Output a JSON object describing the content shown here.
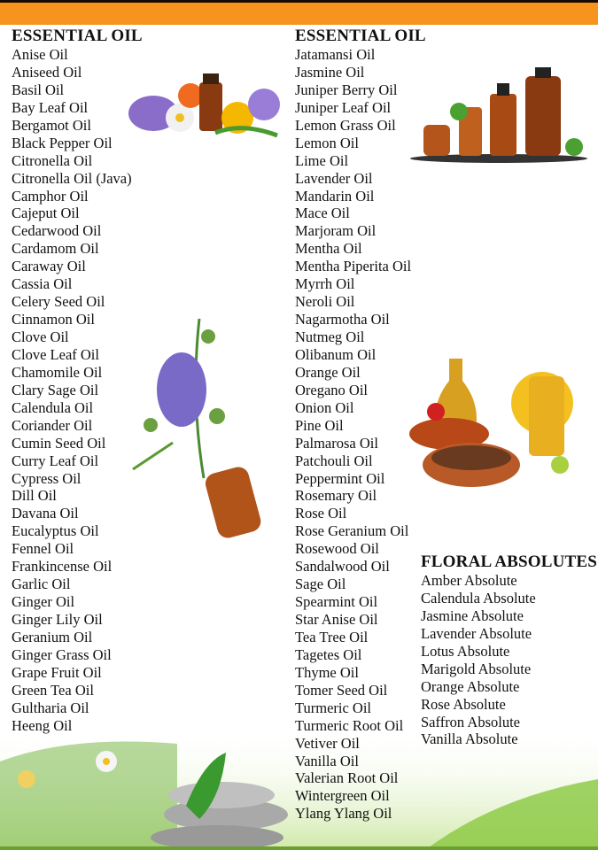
{
  "colors": {
    "top_bar": "#f7941d",
    "heading": "#111111"
  },
  "left_column": {
    "heading": "ESSENTIAL OIL",
    "items": [
      "Anise Oil",
      "Aniseed Oil",
      "Basil Oil",
      "Bay Leaf Oil",
      "Bergamot Oil",
      "Black Pepper Oil",
      "Citronella Oil",
      "Citronella Oil (Java)",
      "Camphor Oil",
      "Cajeput Oil",
      "Cedarwood Oil",
      "Cardamom Oil",
      "Caraway Oil",
      "Cassia Oil",
      "Celery Seed Oil",
      "Cinnamon Oil",
      "Clove Oil",
      "Clove Leaf Oil",
      "Chamomile Oil",
      "Clary Sage Oil",
      "Calendula Oil",
      "Coriander Oil",
      "Cumin Seed Oil",
      "Curry Leaf Oil",
      "Cypress Oil",
      "Dill Oil",
      "Davana Oil",
      "Eucalyptus Oil",
      "Fennel Oil",
      "Frankincense Oil",
      "Garlic Oil",
      "Ginger Oil",
      "Ginger Lily Oil",
      "Geranium Oil",
      "Ginger Grass Oil",
      "Grape Fruit Oil",
      "Green Tea Oil",
      "Gultharia Oil",
      "Heeng Oil"
    ]
  },
  "right_column": {
    "heading": "ESSENTIAL OIL",
    "items": [
      "Jatamansi Oil",
      "Jasmine Oil",
      "Juniper Berry Oil",
      "Juniper Leaf Oil",
      "Lemon Grass Oil",
      "Lemon Oil",
      "Lime Oil",
      "Lavender Oil",
      "Mandarin Oil",
      "Mace Oil",
      "Marjoram Oil",
      "Mentha Oil",
      "Mentha Piperita Oil",
      "Myrrh Oil",
      "Neroli Oil",
      "Nagarmotha Oil",
      "Nutmeg Oil",
      "Olibanum Oil",
      "Orange Oil",
      "Oregano Oil",
      "Onion Oil",
      "Pine Oil",
      "Palmarosa Oil",
      "Patchouli Oil",
      "Peppermint Oil",
      "Rosemary Oil",
      "Rose Oil",
      "Rose Geranium Oil",
      "Rosewood Oil",
      "Sandalwood Oil",
      "Sage Oil",
      "Spearmint Oil",
      "Star Anise Oil",
      "Tea Tree Oil",
      "Tagetes Oil",
      "Thyme Oil",
      "Tomer Seed Oil",
      "Turmeric Oil",
      "Turmeric Root Oil",
      "Vetiver Oil",
      "Vanilla Oil",
      "Valerian Root Oil",
      "Wintergreen Oil",
      "Ylang Ylang Oil"
    ]
  },
  "floral_column": {
    "heading": "FLORAL ABSOLUTES",
    "items": [
      "Amber Absolute",
      "Calendula Absolute",
      "Jasmine Absolute",
      "Lavender Absolute",
      "Lotus Absolute",
      "Marigold Absolute",
      "Orange Absolute",
      "Rose Absolute",
      "Saffron Absolute",
      "Vanilla Absolute"
    ]
  }
}
